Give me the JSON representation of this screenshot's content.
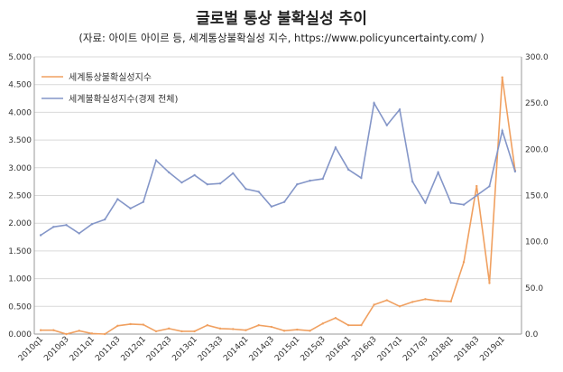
{
  "chart_data": {
    "type": "line",
    "title": "글로벌 통상 불확실성 추이",
    "subtitle": "(자료: 아이트 아이르 등, 세계통상불확실성 지수, https://www.policyuncertainty.com/ )",
    "categories": [
      "2010q1",
      "2010q2",
      "2010q3",
      "2010q4",
      "2011q1",
      "2011q2",
      "2011q3",
      "2011q4",
      "2012q1",
      "2012q2",
      "2012q3",
      "2012q4",
      "2013q1",
      "2013q2",
      "2013q3",
      "2013q4",
      "2014q1",
      "2014q2",
      "2014q3",
      "2014q4",
      "2015q1",
      "2015q2",
      "2015q3",
      "2015q4",
      "2016q1",
      "2016q2",
      "2016q3",
      "2016q4",
      "2017q1",
      "2017q2",
      "2017q3",
      "2017q4",
      "2018q1",
      "2018q2",
      "2018q3",
      "2018q4",
      "2019q1",
      "2019q2"
    ],
    "x_tick_labels": [
      "2010q1",
      "2010q3",
      "2011q1",
      "2011q3",
      "2012q1",
      "2012q3",
      "2013q1",
      "2013q3",
      "2014q1",
      "2014q3",
      "2015q1",
      "2015q3",
      "2016q1",
      "2016q3",
      "2017q1",
      "2017q3",
      "2018q1",
      "2018q3",
      "2019q1"
    ],
    "left_axis": {
      "ylim": [
        0,
        5
      ],
      "ticks": [
        "0.000",
        "0.500",
        "1.000",
        "1.500",
        "2.000",
        "2.500",
        "3.000",
        "3.500",
        "4.000",
        "4.500",
        "5.000"
      ]
    },
    "right_axis": {
      "ylim": [
        0,
        300
      ],
      "ticks": [
        "0.0",
        "50.0",
        "100.0",
        "150.0",
        "200.0",
        "250.0",
        "300.0"
      ]
    },
    "grid": true,
    "legend_position": "top-left",
    "series": [
      {
        "name": "세계통상불확실성지수",
        "axis": "left",
        "color": "#f0a060",
        "values": [
          0.07,
          0.07,
          0.0,
          0.06,
          0.01,
          0.0,
          0.15,
          0.18,
          0.17,
          0.05,
          0.1,
          0.05,
          0.05,
          0.16,
          0.1,
          0.09,
          0.07,
          0.16,
          0.13,
          0.06,
          0.08,
          0.06,
          0.19,
          0.29,
          0.16,
          0.16,
          0.53,
          0.61,
          0.5,
          0.58,
          0.63,
          0.6,
          0.59,
          1.3,
          2.67,
          0.92,
          4.63,
          2.95
        ]
      },
      {
        "name": "세계불확실성지수(경제 전체)",
        "axis": "right",
        "color": "#8496c8",
        "values": [
          107,
          116,
          118,
          109,
          119,
          124,
          146,
          136,
          143,
          188,
          175,
          164,
          172,
          162,
          163,
          174,
          157,
          154,
          138,
          143,
          162,
          166,
          168,
          202,
          178,
          169,
          250,
          226,
          243,
          165,
          142,
          175,
          142,
          140,
          150,
          160,
          220,
          176
        ]
      }
    ]
  }
}
